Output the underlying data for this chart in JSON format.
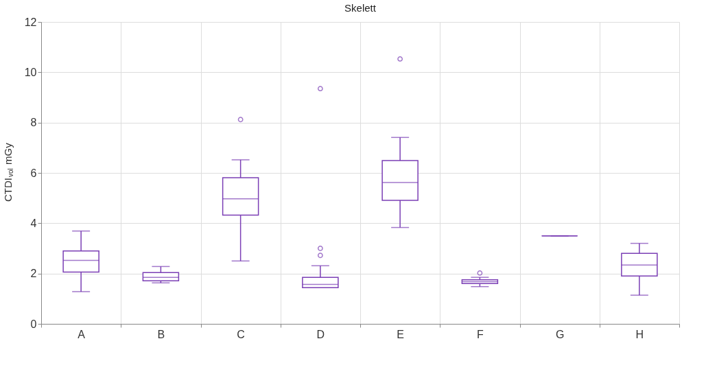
{
  "chart_data": {
    "type": "box",
    "title": "Skelett",
    "ylabel": "CTDI$_{vol}$ mGy",
    "categories": [
      "A",
      "B",
      "C",
      "D",
      "E",
      "F",
      "G",
      "H"
    ],
    "color": "#7b3fb5",
    "boxes": [
      {
        "low": 1.28,
        "q1": 2.06,
        "median": 2.52,
        "q3": 2.9,
        "high": 3.69
      },
      {
        "low": 1.63,
        "q1": 1.71,
        "median": 1.85,
        "q3": 2.04,
        "high": 2.28
      },
      {
        "low": 2.5,
        "q1": 4.32,
        "median": 4.97,
        "q3": 5.81,
        "high": 6.52,
        "outliers": [
          8.12
        ]
      },
      {
        "low": 1.44,
        "q1": 1.44,
        "median": 1.57,
        "q3": 1.85,
        "high": 2.31,
        "outliers": [
          2.72,
          3.0,
          9.35
        ]
      },
      {
        "low": 3.83,
        "q1": 4.91,
        "median": 5.62,
        "q3": 6.49,
        "high": 7.41,
        "outliers": [
          10.53
        ]
      },
      {
        "low": 1.48,
        "q1": 1.6,
        "median": 1.68,
        "q3": 1.75,
        "high": 1.85,
        "outliers": [
          2.02
        ]
      },
      {
        "low": 3.5,
        "q1": 3.5,
        "median": 3.5,
        "q3": 3.5,
        "high": 3.5
      },
      {
        "low": 1.14,
        "q1": 1.9,
        "median": 2.34,
        "q3": 2.8,
        "high": 3.2
      }
    ],
    "ylim": [
      0,
      12
    ],
    "yticks": [
      0,
      2,
      4,
      6,
      8,
      10,
      12
    ],
    "grid": true
  }
}
